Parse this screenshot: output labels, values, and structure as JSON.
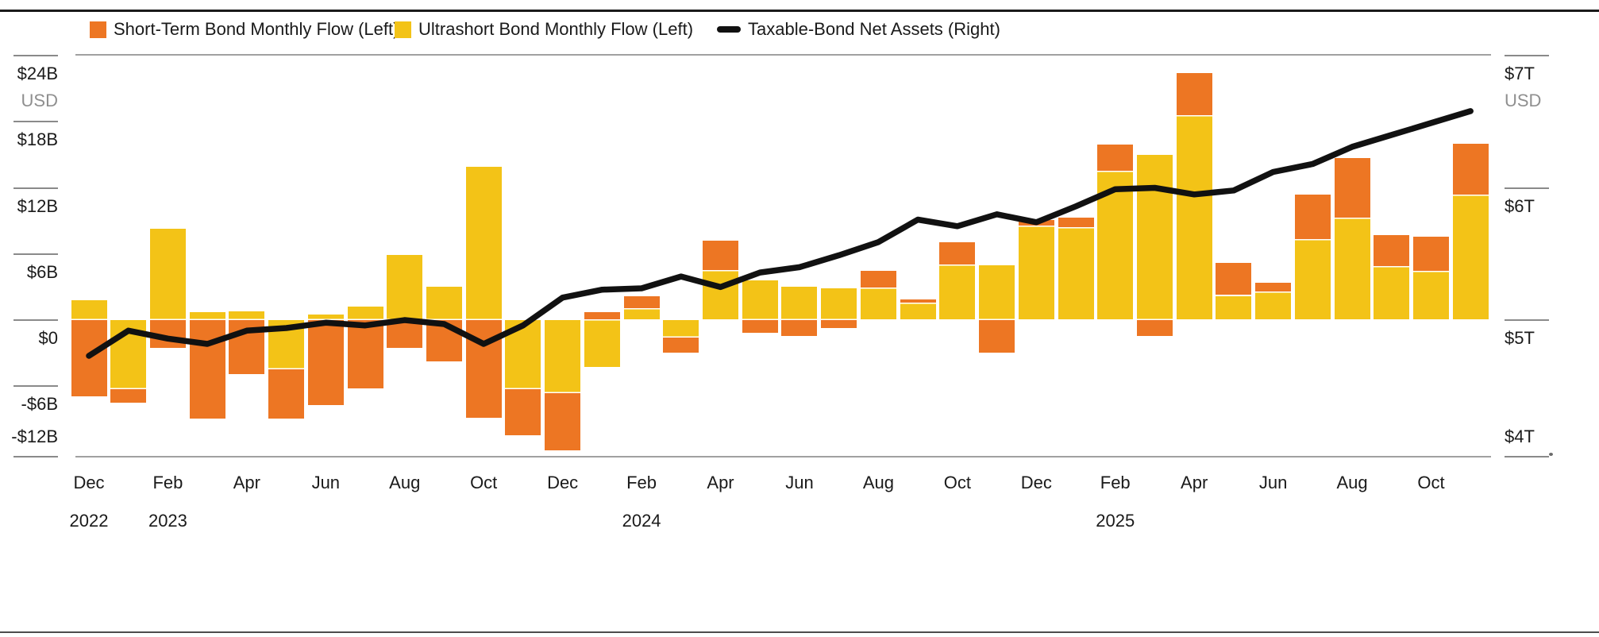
{
  "legend": {
    "items": [
      {
        "label": "Short-Term Bond Monthly Flow (Left)",
        "swatch": "square",
        "color": "#ED7623"
      },
      {
        "label": "Ultrashort Bond Monthly Flow (Left)",
        "swatch": "square",
        "color": "#F3C317"
      },
      {
        "label": "Taxable-Bond Net Assets (Right)",
        "swatch": "line",
        "color": "#111111"
      }
    ]
  },
  "left_axis": {
    "unit": "USD",
    "tick_labels": [
      "$24B",
      "$18B",
      "$12B",
      "$6B",
      "$0",
      "-$6B",
      "-$12B"
    ],
    "tick_values": [
      24,
      18,
      12,
      6,
      0,
      -6,
      -12
    ]
  },
  "right_axis": {
    "unit": "USD",
    "tick_labels": [
      "$7T",
      "$6T",
      "$5T",
      "$4T"
    ],
    "tick_values": [
      7,
      6,
      5,
      4
    ]
  },
  "x_axis": {
    "labels": [
      {
        "month": "Dec",
        "year": "2022"
      },
      {
        "month": "Feb",
        "year": "2023"
      },
      {
        "month": "Apr"
      },
      {
        "month": "Jun"
      },
      {
        "month": "Aug"
      },
      {
        "month": "Oct"
      },
      {
        "month": "Dec"
      },
      {
        "month": "Feb",
        "year": "2024"
      },
      {
        "month": "Apr"
      },
      {
        "month": "Jun"
      },
      {
        "month": "Aug"
      },
      {
        "month": "Oct"
      },
      {
        "month": "Dec"
      },
      {
        "month": "Feb",
        "year": "2025"
      },
      {
        "month": "Apr"
      },
      {
        "month": "Jun"
      },
      {
        "month": "Aug"
      },
      {
        "month": "Oct"
      }
    ]
  },
  "chart_data": {
    "type": "combo",
    "title": "",
    "x_categories": [
      "Dec 2022",
      "Jan 2023",
      "Feb 2023",
      "Mar 2023",
      "Apr 2023",
      "May 2023",
      "Jun 2023",
      "Jul 2023",
      "Aug 2023",
      "Sep 2023",
      "Oct 2023",
      "Nov 2023",
      "Dec 2023",
      "Jan 2024",
      "Feb 2024",
      "Mar 2024",
      "Apr 2024",
      "May 2024",
      "Jun 2024",
      "Jul 2024",
      "Aug 2024",
      "Sep 2024",
      "Oct 2024",
      "Nov 2024",
      "Dec 2024",
      "Jan 2025",
      "Feb 2025",
      "Mar 2025",
      "Apr 2025",
      "May 2025",
      "Jun 2025",
      "Jul 2025",
      "Aug 2025",
      "Sep 2025",
      "Oct 2025",
      "Nov 2025"
    ],
    "series": [
      {
        "name": "Ultrashort Bond Monthly Flow (Left)",
        "type": "bar",
        "axis": "left",
        "unit": "billions USD",
        "color": "#F3C317",
        "values": [
          1.8,
          -6.3,
          8.3,
          0.7,
          0.8,
          -4.5,
          0.5,
          1.2,
          5.9,
          3.0,
          13.9,
          -6.3,
          -6.6,
          -4.3,
          1.0,
          -1.6,
          4.5,
          3.6,
          3.0,
          2.9,
          2.9,
          1.5,
          5.0,
          5.0,
          8.5,
          8.4,
          13.5,
          15.0,
          18.5,
          2.2,
          2.5,
          7.3,
          9.2,
          4.8,
          4.4,
          11.3
        ]
      },
      {
        "name": "Short-Term Bond Monthly Flow (Left)",
        "type": "bar",
        "axis": "left",
        "unit": "billions USD",
        "color": "#ED7623",
        "values": [
          -7.0,
          -1.3,
          -2.6,
          -9.0,
          -5.0,
          -4.5,
          -7.8,
          -6.3,
          -2.6,
          -3.8,
          -8.9,
          -4.2,
          -5.3,
          0.7,
          1.2,
          -1.4,
          2.7,
          -1.2,
          -1.5,
          -0.8,
          1.6,
          0.4,
          2.1,
          -3.0,
          0.6,
          0.9,
          2.4,
          -1.5,
          3.9,
          3.0,
          0.9,
          4.1,
          5.5,
          2.9,
          3.2,
          4.7
        ]
      },
      {
        "name": "Taxable-Bond Net Assets (Right)",
        "type": "line",
        "axis": "right",
        "unit": "trillions USD",
        "color": "#111111",
        "values": [
          4.73,
          4.92,
          4.86,
          4.82,
          4.92,
          4.94,
          4.98,
          4.96,
          5.0,
          4.97,
          4.82,
          4.96,
          5.17,
          5.23,
          5.24,
          5.33,
          5.25,
          5.36,
          5.4,
          5.49,
          5.59,
          5.76,
          5.71,
          5.8,
          5.74,
          5.86,
          5.99,
          6.0,
          5.95,
          5.98,
          6.12,
          6.18,
          6.31,
          6.4,
          6.49,
          6.58
        ]
      }
    ],
    "stacking": "signed (ultrashort adjacent to zero, short-term stacked outside)",
    "left_axis_range_billions": [
      -12.4,
      24.1
    ],
    "right_axis_range_trillions": [
      3.97,
      7.01
    ],
    "grid": "top and bottom frame lines only",
    "legend_position": "top-left"
  }
}
